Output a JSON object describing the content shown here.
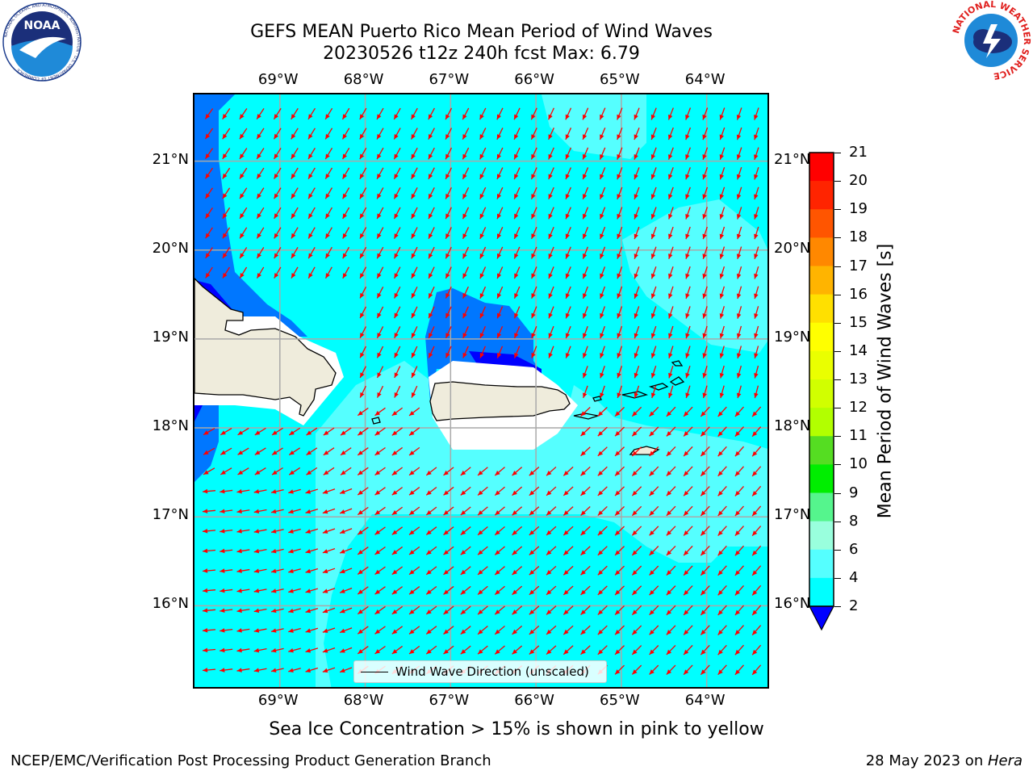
{
  "header": {
    "title_line1": "GEFS MEAN Puerto Rico Mean Period of Wind Waves",
    "title_line2": "20230526 t12z 240h fcst   Max: 6.79"
  },
  "logos": {
    "noaa_text": "NOAA",
    "noaa_ring": "NATIONAL OCEANIC AND ATMOSPHERIC ADMINISTRATION · U.S. DEPARTMENT OF COMMERCE",
    "nws_ring": "NATIONAL WEATHER SERVICE"
  },
  "map": {
    "lon_labels": [
      "69°W",
      "68°W",
      "67°W",
      "66°W",
      "65°W",
      "64°W"
    ],
    "lat_labels": [
      "21°N",
      "20°N",
      "19°N",
      "18°N",
      "17°N",
      "16°N"
    ],
    "lon_range": [
      -70.0,
      -63.25
    ],
    "lat_range": [
      15.05,
      21.75
    ],
    "grid": true,
    "ocean_color": "#00ffff",
    "land_color": "#efecdc",
    "arrow_color": "#ff0000"
  },
  "legend": {
    "label": "Wind Wave Direction (unscaled)"
  },
  "colorbar": {
    "label": "Mean Period of Wind Waves [s]",
    "ticks": [
      "21",
      "20",
      "19",
      "18",
      "17",
      "16",
      "15",
      "14",
      "13",
      "12",
      "11",
      "10",
      "9",
      "8",
      "6",
      "4",
      "2"
    ],
    "colors_top_to_bottom": [
      "#ff0000",
      "#ff2400",
      "#ff5500",
      "#ff8800",
      "#ffb400",
      "#ffe000",
      "#ffff00",
      "#eaff00",
      "#d1ff00",
      "#b2ff00",
      "#55dd22",
      "#00ee00",
      "#55f58d",
      "#99ffdd",
      "#55ffff",
      "#00ffff",
      "#0077ff"
    ],
    "under_color": "#0000ff"
  },
  "chart_data": {
    "type": "heatmap",
    "title": "GEFS MEAN Puerto Rico Mean Period of Wind Waves",
    "subtitle": "20230526 t12z 240h fcst   Max: 6.79",
    "colorbar_label": "Mean Period of Wind Waves [s]",
    "levels": [
      2,
      4,
      6,
      8,
      9,
      10,
      11,
      12,
      13,
      14,
      15,
      16,
      17,
      18,
      19,
      20,
      21
    ],
    "max": 6.79,
    "lon_range": [
      -70.0,
      -63.25
    ],
    "lat_range": [
      15.05,
      21.75
    ]
  },
  "caption": "Sea Ice Concentration > 15% is shown in pink to yellow",
  "footer": {
    "left": "NCEP/EMC/Verification Post Processing Product Generation Branch",
    "right_prefix": "28 May 2023 on ",
    "right_host": "Hera"
  }
}
